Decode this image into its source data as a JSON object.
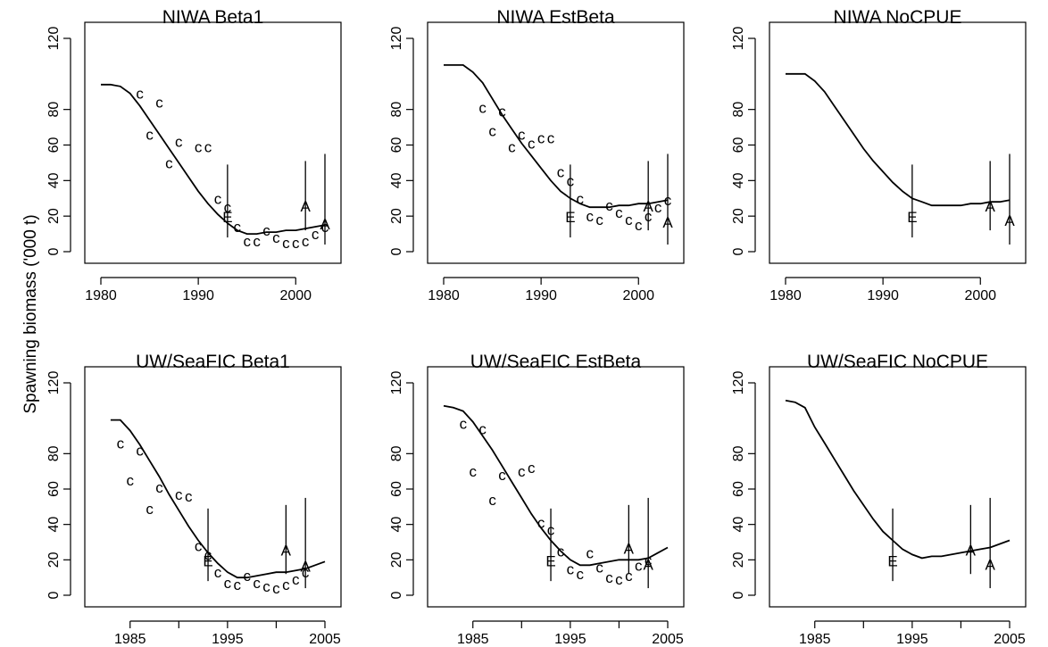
{
  "figure": {
    "ylabel": "Spawning biomass ('000 t)"
  },
  "chart_data": [
    {
      "type": "line",
      "title": "NIWA Beta1",
      "xlim": [
        1980,
        2003
      ],
      "ylim": [
        0,
        120
      ],
      "xticks": [
        1980,
        1990,
        2000
      ],
      "yticks": [
        0,
        20,
        40,
        60,
        80,
        120
      ],
      "series": [
        {
          "x": [
            1980,
            1981,
            1982,
            1983,
            1984,
            1985,
            1986,
            1987,
            1988,
            1989,
            1990,
            1991,
            1992,
            1993,
            1994,
            1995,
            1996,
            1997,
            1998,
            1999,
            2000,
            2001,
            2002,
            2003
          ],
          "values": [
            94,
            94,
            93,
            89,
            82,
            74,
            66,
            58,
            50,
            42,
            34,
            27,
            21,
            16,
            12,
            10,
            10,
            11,
            11,
            12,
            12,
            13,
            14,
            15
          ]
        }
      ],
      "cpue": {
        "label": "C",
        "points": [
          [
            1984,
            89
          ],
          [
            1985,
            66
          ],
          [
            1986,
            84
          ],
          [
            1987,
            50
          ],
          [
            1988,
            62
          ],
          [
            1990,
            59
          ],
          [
            1991,
            59
          ],
          [
            1992,
            30
          ],
          [
            1993,
            25
          ],
          [
            1994,
            14
          ],
          [
            1995,
            6
          ],
          [
            1996,
            6
          ],
          [
            1997,
            12
          ],
          [
            1998,
            8
          ],
          [
            1999,
            5
          ],
          [
            2000,
            5
          ],
          [
            2001,
            6
          ],
          [
            2002,
            10
          ],
          [
            2003,
            14
          ]
        ]
      },
      "estimates": [
        {
          "label": "E",
          "x": 1993,
          "y": 20,
          "low": 8,
          "high": 49
        },
        {
          "label": "A",
          "x": 2001,
          "y": 26,
          "low": 12,
          "high": 51
        },
        {
          "label": "A",
          "x": 2003,
          "y": 16,
          "low": 4,
          "high": 55
        }
      ]
    },
    {
      "type": "line",
      "title": "NIWA EstBeta",
      "xlim": [
        1980,
        2003
      ],
      "ylim": [
        0,
        120
      ],
      "xticks": [
        1980,
        1990,
        2000
      ],
      "yticks": [
        0,
        20,
        40,
        60,
        80,
        120
      ],
      "series": [
        {
          "x": [
            1980,
            1981,
            1982,
            1983,
            1984,
            1985,
            1986,
            1987,
            1988,
            1989,
            1990,
            1991,
            1992,
            1993,
            1994,
            1995,
            1996,
            1997,
            1998,
            1999,
            2000,
            2001,
            2002,
            2003
          ],
          "values": [
            105,
            105,
            105,
            101,
            95,
            86,
            77,
            69,
            61,
            54,
            47,
            40,
            34,
            30,
            27,
            25,
            25,
            25,
            26,
            26,
            27,
            27,
            28,
            29
          ]
        }
      ],
      "cpue": {
        "label": "C",
        "points": [
          [
            1984,
            81
          ],
          [
            1985,
            68
          ],
          [
            1986,
            79
          ],
          [
            1987,
            59
          ],
          [
            1988,
            66
          ],
          [
            1989,
            61
          ],
          [
            1990,
            64
          ],
          [
            1991,
            64
          ],
          [
            1992,
            45
          ],
          [
            1993,
            40
          ],
          [
            1994,
            30
          ],
          [
            1995,
            20
          ],
          [
            1996,
            18
          ],
          [
            1997,
            26
          ],
          [
            1998,
            22
          ],
          [
            1999,
            18
          ],
          [
            2000,
            15
          ],
          [
            2001,
            20
          ],
          [
            2002,
            25
          ],
          [
            2003,
            29
          ]
        ]
      },
      "estimates": [
        {
          "label": "E",
          "x": 1993,
          "y": 20,
          "low": 8,
          "high": 49
        },
        {
          "label": "A",
          "x": 2001,
          "y": 26,
          "low": 12,
          "high": 51
        },
        {
          "label": "A",
          "x": 2003,
          "y": 17,
          "low": 4,
          "high": 55
        }
      ]
    },
    {
      "type": "line",
      "title": "NIWA NoCPUE",
      "xlim": [
        1980,
        2003
      ],
      "ylim": [
        0,
        120
      ],
      "xticks": [
        1980,
        1990,
        2000
      ],
      "yticks": [
        0,
        20,
        40,
        60,
        80,
        120
      ],
      "series": [
        {
          "x": [
            1980,
            1981,
            1982,
            1983,
            1984,
            1985,
            1986,
            1987,
            1988,
            1989,
            1990,
            1991,
            1992,
            1993,
            1994,
            1995,
            1996,
            1997,
            1998,
            1999,
            2000,
            2001,
            2002,
            2003
          ],
          "values": [
            100,
            100,
            100,
            96,
            90,
            82,
            74,
            66,
            58,
            51,
            45,
            39,
            34,
            30,
            28,
            26,
            26,
            26,
            26,
            27,
            27,
            28,
            28,
            29
          ]
        }
      ],
      "estimates": [
        {
          "label": "E",
          "x": 1993,
          "y": 20,
          "low": 8,
          "high": 49
        },
        {
          "label": "A",
          "x": 2001,
          "y": 26,
          "low": 12,
          "high": 51
        },
        {
          "label": "A",
          "x": 2003,
          "y": 18,
          "low": 4,
          "high": 55
        }
      ]
    },
    {
      "type": "line",
      "title": "UW/SeaFIC Beta1",
      "xlim": [
        1982,
        2005
      ],
      "ylim": [
        0,
        120
      ],
      "xticks": [
        1985,
        1995,
        2005
      ],
      "xticks_unlabeled": [
        1990,
        2000
      ],
      "yticks": [
        0,
        20,
        40,
        60,
        80,
        120
      ],
      "series": [
        {
          "x": [
            1983,
            1984,
            1985,
            1986,
            1987,
            1988,
            1989,
            1990,
            1991,
            1992,
            1993,
            1994,
            1995,
            1996,
            1997,
            1998,
            1999,
            2000,
            2001,
            2002,
            2003,
            2004,
            2005
          ],
          "values": [
            99,
            99,
            93,
            85,
            76,
            67,
            57,
            48,
            39,
            31,
            24,
            18,
            13,
            10,
            10,
            11,
            12,
            13,
            13,
            14,
            15,
            17,
            19
          ]
        }
      ],
      "cpue": {
        "label": "C",
        "points": [
          [
            1984,
            86
          ],
          [
            1985,
            65
          ],
          [
            1986,
            82
          ],
          [
            1987,
            49
          ],
          [
            1988,
            61
          ],
          [
            1990,
            57
          ],
          [
            1991,
            56
          ],
          [
            1992,
            28
          ],
          [
            1993,
            23
          ],
          [
            1994,
            13
          ],
          [
            1995,
            7
          ],
          [
            1996,
            6
          ],
          [
            1997,
            11
          ],
          [
            1998,
            7
          ],
          [
            1999,
            5
          ],
          [
            2000,
            4
          ],
          [
            2001,
            6
          ],
          [
            2002,
            9
          ],
          [
            2003,
            13
          ]
        ]
      },
      "estimates": [
        {
          "label": "E",
          "x": 1993,
          "y": 20,
          "low": 8,
          "high": 49
        },
        {
          "label": "A",
          "x": 2001,
          "y": 26,
          "low": 12,
          "high": 51
        },
        {
          "label": "A",
          "x": 2003,
          "y": 17,
          "low": 4,
          "high": 55
        }
      ]
    },
    {
      "type": "line",
      "title": "UW/SeaFIC EstBeta",
      "xlim": [
        1982,
        2005
      ],
      "ylim": [
        0,
        120
      ],
      "xticks": [
        1985,
        1995,
        2005
      ],
      "xticks_unlabeled": [
        1990,
        2000
      ],
      "yticks": [
        0,
        20,
        40,
        60,
        80,
        120
      ],
      "series": [
        {
          "x": [
            1982,
            1983,
            1984,
            1985,
            1986,
            1987,
            1988,
            1989,
            1990,
            1991,
            1992,
            1993,
            1994,
            1995,
            1996,
            1997,
            1998,
            1999,
            2000,
            2001,
            2002,
            2003,
            2004,
            2005
          ],
          "values": [
            107,
            106,
            104,
            98,
            90,
            82,
            73,
            64,
            55,
            46,
            38,
            31,
            25,
            20,
            17,
            17,
            18,
            19,
            20,
            20,
            20,
            21,
            24,
            27
          ]
        }
      ],
      "cpue": {
        "label": "C",
        "points": [
          [
            1984,
            97
          ],
          [
            1985,
            70
          ],
          [
            1986,
            94
          ],
          [
            1987,
            54
          ],
          [
            1988,
            68
          ],
          [
            1990,
            70
          ],
          [
            1991,
            72
          ],
          [
            1992,
            41
          ],
          [
            1993,
            37
          ],
          [
            1994,
            25
          ],
          [
            1995,
            15
          ],
          [
            1996,
            12
          ],
          [
            1997,
            24
          ],
          [
            1998,
            16
          ],
          [
            1999,
            10
          ],
          [
            2000,
            9
          ],
          [
            2001,
            11
          ],
          [
            2002,
            17
          ],
          [
            2003,
            20
          ]
        ]
      },
      "estimates": [
        {
          "label": "E",
          "x": 1993,
          "y": 20,
          "low": 8,
          "high": 49
        },
        {
          "label": "A",
          "x": 2001,
          "y": 27,
          "low": 12,
          "high": 51
        },
        {
          "label": "A",
          "x": 2003,
          "y": 18,
          "low": 4,
          "high": 55
        }
      ]
    },
    {
      "type": "line",
      "title": "UW/SeaFIC NoCPUE",
      "xlim": [
        1982,
        2005
      ],
      "ylim": [
        0,
        120
      ],
      "xticks": [
        1985,
        1995,
        2005
      ],
      "xticks_unlabeled": [
        1990,
        2000
      ],
      "yticks": [
        0,
        20,
        40,
        60,
        80,
        120
      ],
      "series": [
        {
          "x": [
            1982,
            1983,
            1984,
            1985,
            1986,
            1987,
            1988,
            1989,
            1990,
            1991,
            1992,
            1993,
            1994,
            1995,
            1996,
            1997,
            1998,
            1999,
            2000,
            2001,
            2002,
            2003,
            2004,
            2005
          ],
          "values": [
            110,
            109,
            106,
            95,
            86,
            77,
            68,
            59,
            51,
            43,
            36,
            31,
            26,
            23,
            21,
            22,
            22,
            23,
            24,
            25,
            26,
            27,
            29,
            31
          ]
        }
      ],
      "estimates": [
        {
          "label": "E",
          "x": 1993,
          "y": 20,
          "low": 8,
          "high": 49
        },
        {
          "label": "A",
          "x": 2001,
          "y": 26,
          "low": 12,
          "high": 51
        },
        {
          "label": "A",
          "x": 2003,
          "y": 18,
          "low": 4,
          "high": 55
        }
      ]
    }
  ]
}
